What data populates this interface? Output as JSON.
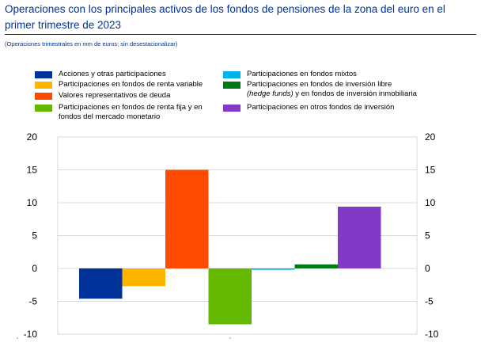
{
  "header": {
    "title": "Operaciones con los principales activos de los fondos de pensiones de la zona del euro en el primer trimestre de 2023",
    "subtitle": "(Operaciones trimestrales en mm de euros; sin desestacionalizar)"
  },
  "legend": {
    "left": [
      {
        "label": "Acciones y otras participaciones",
        "color": "#003299"
      },
      {
        "label": "Participaciones en fondos de renta variable",
        "color": "#ffb400"
      },
      {
        "label": "Valores representativos de deuda",
        "color": "#ff4b00"
      },
      {
        "label": "Participaciones en fondos de renta fija y en fondos del mercado monetario",
        "color": "#65b800"
      }
    ],
    "right": [
      {
        "label": "Participaciones en fondos mixtos",
        "color": "#00b1ea"
      },
      {
        "label_italic": "(hedge funds)",
        "label_line1": "Participaciones en fondos de inversión libre",
        "label_rest": " y en fondos de inversión inmobiliaria",
        "color": "#007816"
      },
      {
        "label": "Participaciones en otros fondos de inversión",
        "color": "#8139c6"
      }
    ]
  },
  "chart_data": {
    "type": "bar",
    "title": "Operaciones con los principales activos de los fondos de pensiones de la zona del euro en el primer trimestre de 2023",
    "subtitle": "(Operaciones trimestrales en mm de euros; sin desestacionalizar)",
    "categories": [
      "Acciones y otras participaciones",
      "Participaciones en fondos de renta variable",
      "Valores representativos de deuda",
      "Participaciones en fondos de renta fija y en fondos del mercado monetario",
      "Participaciones en fondos mixtos",
      "Participaciones en fondos de inversión libre (hedge funds) y en fondos de inversión inmobiliaria",
      "Participaciones en otros fondos de inversión"
    ],
    "values": [
      -4.6,
      -2.7,
      15.0,
      -8.5,
      -0.2,
      0.6,
      9.4
    ],
    "colors": [
      "#003299",
      "#ffb400",
      "#ff4b00",
      "#65b800",
      "#00b1ea",
      "#007816",
      "#8139c6"
    ],
    "ylim": [
      -10,
      20
    ],
    "yticks": [
      20,
      15,
      10,
      5,
      0,
      -5,
      -10
    ],
    "ytick_labels": [
      "20",
      "15",
      "10",
      "5",
      "0",
      "-5",
      "-10"
    ],
    "y_axis_both_sides": true,
    "grid": "horizontal",
    "legend_position": "top"
  }
}
